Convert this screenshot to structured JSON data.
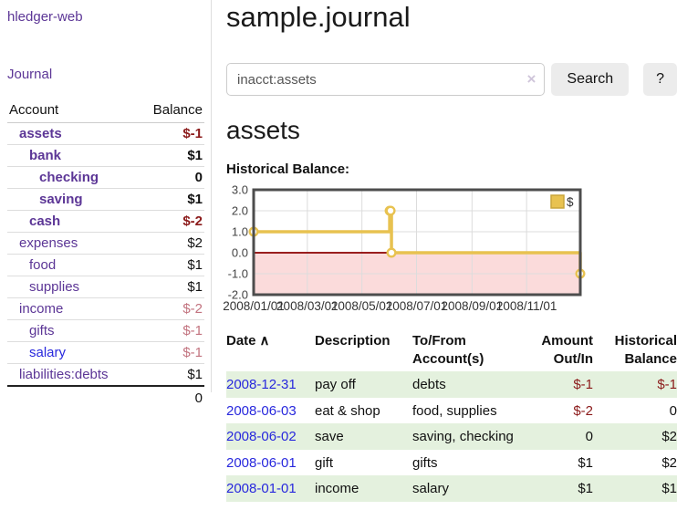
{
  "colors": {
    "purple": "#5c3696",
    "link_blue": "#2828dd",
    "negative_dark": "#8b1a1a",
    "negative_rose": "#c2737f",
    "row_green": "#e4f1de",
    "chart_gold": "#e8c250",
    "chart_pink": "#fbdbdb",
    "chart_zero_line": "#8b0000"
  },
  "sidebar": {
    "brand": "hledger-web",
    "journal_label": "Journal",
    "table": {
      "account_header": "Account",
      "balance_header": "Balance",
      "rows": [
        {
          "name": "assets",
          "depth": 1,
          "bold": true,
          "balance": "$-1",
          "negative": true
        },
        {
          "name": "bank",
          "depth": 2,
          "bold": true,
          "balance": "$1"
        },
        {
          "name": "checking",
          "depth": 3,
          "bold": true,
          "balance": "0"
        },
        {
          "name": "saving",
          "depth": 3,
          "bold": true,
          "balance": "$1"
        },
        {
          "name": "cash",
          "depth": 2,
          "bold": true,
          "balance": "$-2",
          "negative": true
        },
        {
          "name": "expenses",
          "depth": 1,
          "balance": "$2"
        },
        {
          "name": "food",
          "depth": 2,
          "balance": "$1"
        },
        {
          "name": "supplies",
          "depth": 2,
          "balance": "$1"
        },
        {
          "name": "income",
          "depth": 1,
          "balance": "$-2",
          "negative": true
        },
        {
          "name": "gifts",
          "depth": 2,
          "balance": "$-1",
          "negative": true
        },
        {
          "name": "salary",
          "depth": 2,
          "balance": "$-1",
          "negative": true,
          "unvisited": true
        },
        {
          "name": "liabilities:debts",
          "depth": 1,
          "balance": "$1"
        }
      ],
      "total": "0"
    }
  },
  "main": {
    "title": "sample.journal",
    "search": {
      "query": "inacct:assets",
      "clear_icon": "×",
      "button_label": "Search",
      "help_label": "?"
    },
    "account_heading": "assets",
    "register": {
      "headers": [
        {
          "label": "Date",
          "sort": "asc",
          "sort_icon": "∧"
        },
        {
          "label": "Description"
        },
        {
          "label": "To/From Account(s)"
        },
        {
          "label": "Amount Out/In"
        },
        {
          "label": "Historical Balance"
        }
      ],
      "rows": [
        {
          "date": "2008-12-31",
          "description": "pay off",
          "accounts": "debts",
          "amount": "$-1",
          "balance": "$-1"
        },
        {
          "date": "2008-06-03",
          "description": "eat & shop",
          "accounts": "food, supplies",
          "amount": "$-2",
          "balance": "0"
        },
        {
          "date": "2008-06-02",
          "description": "save",
          "accounts": "saving, checking",
          "amount": "0",
          "balance": "$2"
        },
        {
          "date": "2008-06-01",
          "description": "gift",
          "accounts": "gifts",
          "amount": "$1",
          "balance": "$2"
        },
        {
          "date": "2008-01-01",
          "description": "income",
          "accounts": "salary",
          "amount": "$1",
          "balance": "$1"
        }
      ]
    }
  },
  "chart_data": {
    "type": "line",
    "title": "Historical Balance:",
    "step": true,
    "series": [
      {
        "name": "$",
        "color": "#e8c250",
        "points": [
          [
            "2008-01-01",
            1
          ],
          [
            "2008-06-01",
            2
          ],
          [
            "2008-06-02",
            2
          ],
          [
            "2008-06-03",
            0
          ],
          [
            "2008-12-31",
            -1
          ]
        ]
      }
    ],
    "x_range": [
      "2008-01-01",
      "2008-12-31"
    ],
    "x_ticks": [
      "2008/01/01",
      "2008/03/01",
      "2008/05/01",
      "2008/07/01",
      "2008/09/01",
      "2008/11/01"
    ],
    "y_ticks": [
      3,
      2,
      1,
      0,
      -1,
      -2
    ],
    "y_tick_labels": [
      "3.0",
      "2.0",
      "1.0",
      "0.0",
      "-1.0",
      "-2.0"
    ],
    "ylim": [
      -2,
      3
    ],
    "grid": true,
    "legend_position": "top-right",
    "negative_region_color": "#fbdbdb",
    "zero_line_color": "#8b0000"
  }
}
